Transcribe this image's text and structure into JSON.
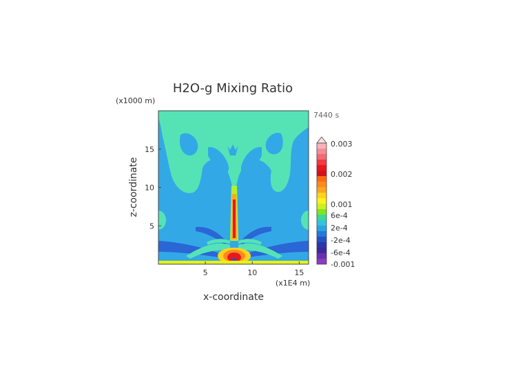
{
  "chart_data": {
    "type": "heatmap",
    "title": "H2O-g Mixing Ratio",
    "time_label": "7440 s",
    "xlabel": "x-coordinate",
    "ylabel": "z-coordinate",
    "x_unit": "(x1E4 m)",
    "y_unit": "(x1000 m)",
    "xlim": [
      0,
      16
    ],
    "ylim": [
      0,
      20
    ],
    "x_ticks": [
      5,
      10,
      15
    ],
    "y_ticks": [
      5,
      10,
      15
    ],
    "colorbar": {
      "labels": [
        "0.003",
        "0.002",
        "0.001",
        "6e-4",
        "2e-4",
        "-2e-4",
        "-6e-4",
        "-0.001"
      ],
      "colors": [
        "#F7B3B8",
        "#F58D95",
        "#F26A72",
        "#F03A3E",
        "#E8171D",
        "#D2121A",
        "#FF6A12",
        "#FF8A1C",
        "#FFA51F",
        "#FFD21E",
        "#FFF21C",
        "#CFEF1E",
        "#7EE61F",
        "#3CD89A",
        "#34C3D8",
        "#2AA3E6",
        "#2279D9",
        "#2452C6",
        "#2B37A8",
        "#3A2A9A",
        "#6A2FB0",
        "#8A3CC0"
      ]
    },
    "colors": {
      "background_field": "#33A8E6",
      "plume": "#55E3B6",
      "dark_band": "#2A66D6",
      "surface": "#E6F21C",
      "core": "#E8171D"
    }
  }
}
